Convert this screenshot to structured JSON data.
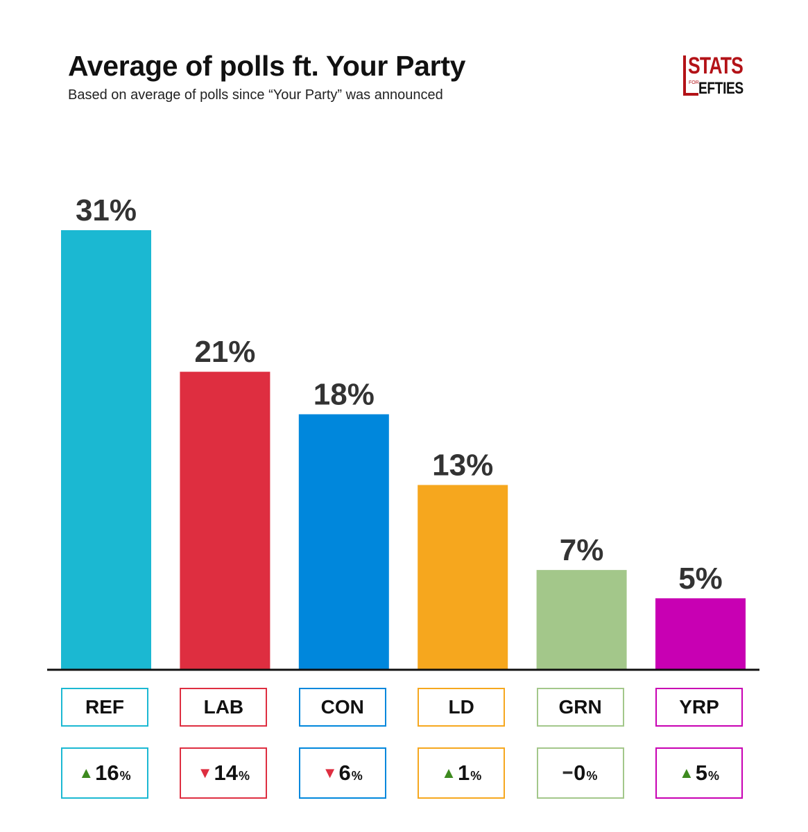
{
  "header": {
    "title": "Average of polls ft. Your Party",
    "subtitle": "Based on average of polls since “Your Party” was announced"
  },
  "logo": {
    "line1": "STATS",
    "line2": "FOR",
    "line3": "EFTIES"
  },
  "chart_data": {
    "type": "bar",
    "title": "Average of polls ft. Your Party",
    "subtitle": "Based on average of polls since “Your Party” was announced",
    "categories": [
      "REF",
      "LAB",
      "CON",
      "LD",
      "GRN",
      "YRP"
    ],
    "values": [
      31,
      21,
      18,
      13,
      7,
      5
    ],
    "value_labels": [
      "31%",
      "21%",
      "18%",
      "13%",
      "7%",
      "5%"
    ],
    "colors": [
      "#1bb8d2",
      "#de2e40",
      "#0087dc",
      "#f6a71e",
      "#a3c78a",
      "#c800b3"
    ],
    "changes": [
      {
        "direction": "up",
        "value": "16",
        "unit": "%"
      },
      {
        "direction": "down",
        "value": "14",
        "unit": "%"
      },
      {
        "direction": "down",
        "value": "6",
        "unit": "%"
      },
      {
        "direction": "up",
        "value": "1",
        "unit": "%"
      },
      {
        "direction": "none",
        "value": "0",
        "unit": "%"
      },
      {
        "direction": "up",
        "value": "5",
        "unit": "%"
      }
    ],
    "indicator_colors": {
      "up": "#3d8a1f",
      "down": "#de2e40",
      "none": "#333333"
    },
    "ylim": [
      0,
      31
    ],
    "xlabel": "",
    "ylabel": "",
    "grid": false
  }
}
